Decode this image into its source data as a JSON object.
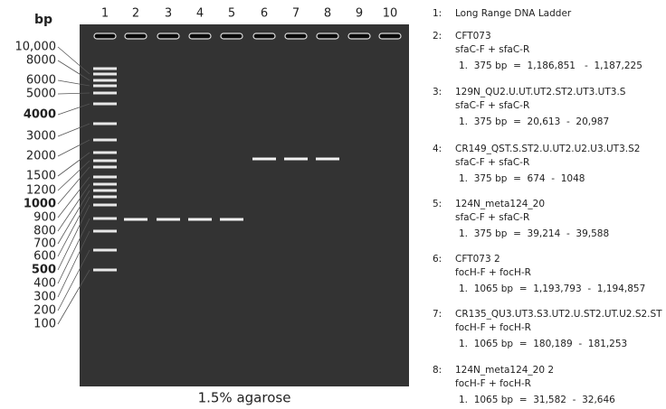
{
  "axis_label": "bp",
  "lanes": [
    "1",
    "2",
    "3",
    "4",
    "5",
    "6",
    "7",
    "8",
    "9",
    "10"
  ],
  "ladder": [
    "10,000",
    "8000",
    "6000",
    "5000",
    "4000",
    "3000",
    "2000",
    "1500",
    "1200",
    "1000",
    "900",
    "800",
    "700",
    "600",
    "500",
    "400",
    "300",
    "200",
    "100"
  ],
  "legend": [
    {
      "number": "1:",
      "lines": [
        "Long Range DNA Ladder"
      ]
    },
    {
      "number": "2:",
      "lines": [
        "CFT073",
        "sfaC-F + sfaC-R",
        "1.  375 bp  =  1,186,851   -  1,187,225"
      ]
    },
    {
      "number": "3:",
      "lines": [
        "129N_QU2.U.UT.UT2.ST2.UT3.UT3.S",
        "sfaC-F + sfaC-R",
        "1.  375 bp  =  20,613  -  20,987"
      ]
    },
    {
      "number": "4:",
      "lines": [
        "CR149_QST.S.ST2.U.UT2.U2.U3.UT3.S2",
        "sfaC-F + sfaC-R",
        "1.  375 bp  =  674  -  1048"
      ]
    },
    {
      "number": "5:",
      "lines": [
        "124N_meta124_20",
        "sfaC-F + sfaC-R",
        "1.  375 bp  =  39,214  -  39,588"
      ]
    },
    {
      "number": "6:",
      "lines": [
        "CFT073 2",
        "focH-F + focH-R",
        "1.  1065 bp  =  1,193,793  -  1,194,857"
      ]
    },
    {
      "number": "7:",
      "lines": [
        "CR135_QU3.UT3.S3.UT2.U.ST2.UT.U2.S2.ST",
        "focH-F + focH-R",
        "1.  1065 bp  =  180,189  -  181,253"
      ]
    },
    {
      "number": "8:",
      "lines": [
        "124N_meta124_20 2",
        "focH-F + focH-R",
        "1.  1065 bp  =  31,582  -  32,646"
      ]
    }
  ],
  "caption": "1.5% agarose"
}
